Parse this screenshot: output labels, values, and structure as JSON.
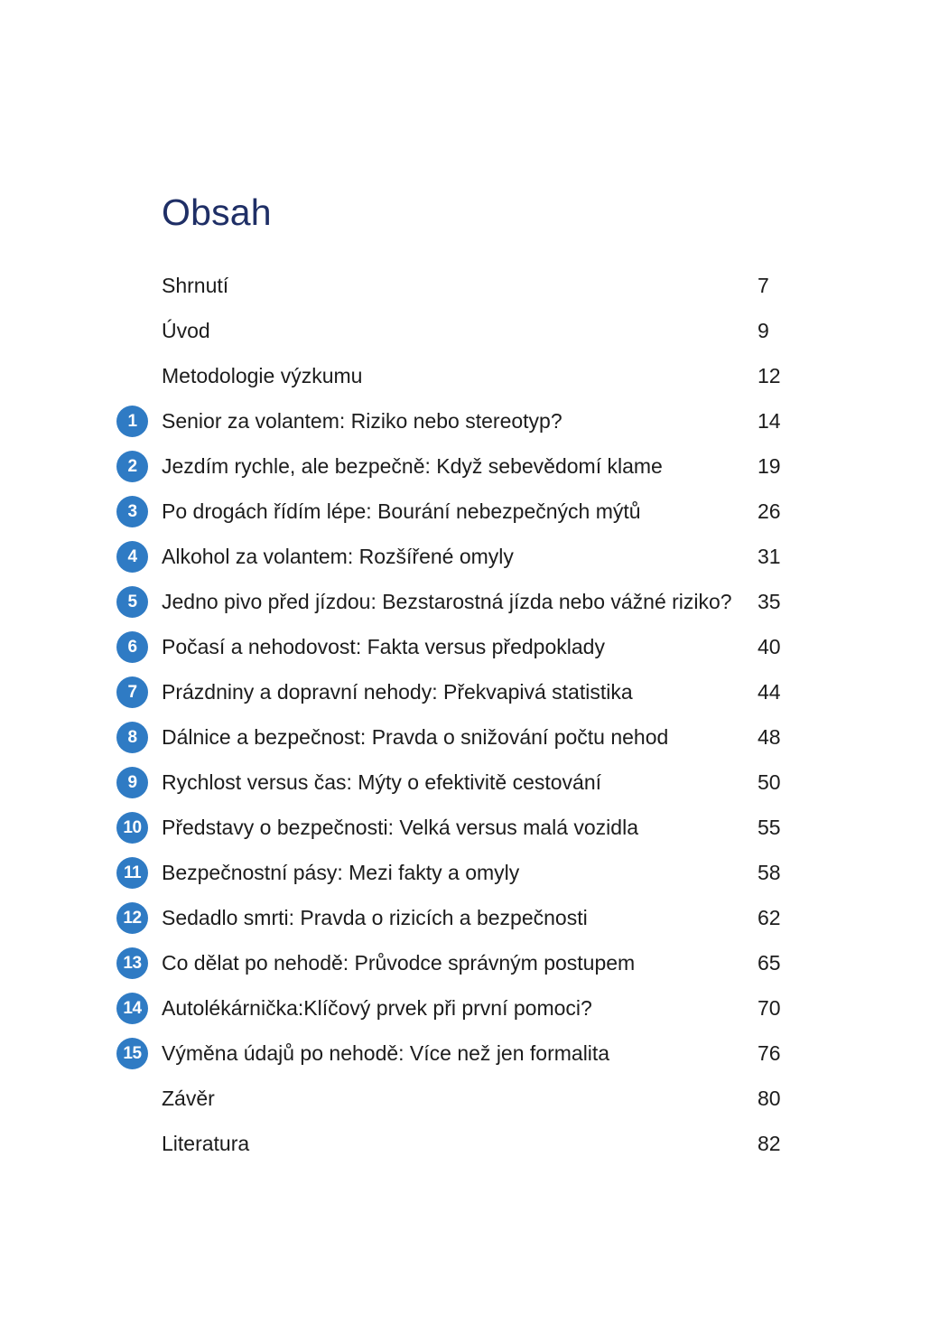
{
  "toc": {
    "title": "Obsah",
    "entries": [
      {
        "number": "",
        "title": "Shrnutí",
        "page": "7"
      },
      {
        "number": "",
        "title": "Úvod",
        "page": "9"
      },
      {
        "number": "",
        "title": "Metodologie výzkumu",
        "page": "12"
      },
      {
        "number": "1",
        "title": "Senior za volantem: Riziko nebo stereotyp?",
        "page": "14"
      },
      {
        "number": "2",
        "title": "Jezdím rychle, ale bezpečně: Když sebevědomí klame",
        "page": "19"
      },
      {
        "number": "3",
        "title": "Po drogách řídím lépe: Bourání nebezpečných mýtů",
        "page": "26"
      },
      {
        "number": "4",
        "title": "Alkohol za volantem: Rozšířené omyly",
        "page": "31"
      },
      {
        "number": "5",
        "title": "Jedno pivo před jízdou: Bezstarostná jízda nebo vážné riziko?",
        "page": "35"
      },
      {
        "number": "6",
        "title": "Počasí a nehodovost: Fakta versus předpoklady",
        "page": "40"
      },
      {
        "number": "7",
        "title": "Prázdniny a dopravní nehody: Překvapivá statistika",
        "page": "44"
      },
      {
        "number": "8",
        "title": "Dálnice a bezpečnost: Pravda o snižování počtu nehod",
        "page": "48"
      },
      {
        "number": "9",
        "title": "Rychlost versus čas: Mýty o efektivitě cestování",
        "page": "50"
      },
      {
        "number": "10",
        "title": "Představy o bezpečnosti: Velká versus malá vozidla",
        "page": "55"
      },
      {
        "number": "11",
        "title": "Bezpečnostní pásy: Mezi fakty a omyly",
        "page": "58"
      },
      {
        "number": "12",
        "title": "Sedadlo smrti: Pravda o rizicích a bezpečnosti",
        "page": "62"
      },
      {
        "number": "13",
        "title": "Co dělat po nehodě: Průvodce správným postupem",
        "page": "65"
      },
      {
        "number": "14",
        "title": "Autolékárnička:Klíčový prvek při první pomoci?",
        "page": "70"
      },
      {
        "number": "15",
        "title": "Výměna údajů po nehodě: Více než jen formalita",
        "page": "76"
      },
      {
        "number": "",
        "title": "Závěr",
        "page": "80"
      },
      {
        "number": "",
        "title": "Literatura",
        "page": "82"
      }
    ]
  },
  "colors": {
    "title": "#1f2f66",
    "badge": "#2f7bc4",
    "text": "#1c1c1c"
  }
}
